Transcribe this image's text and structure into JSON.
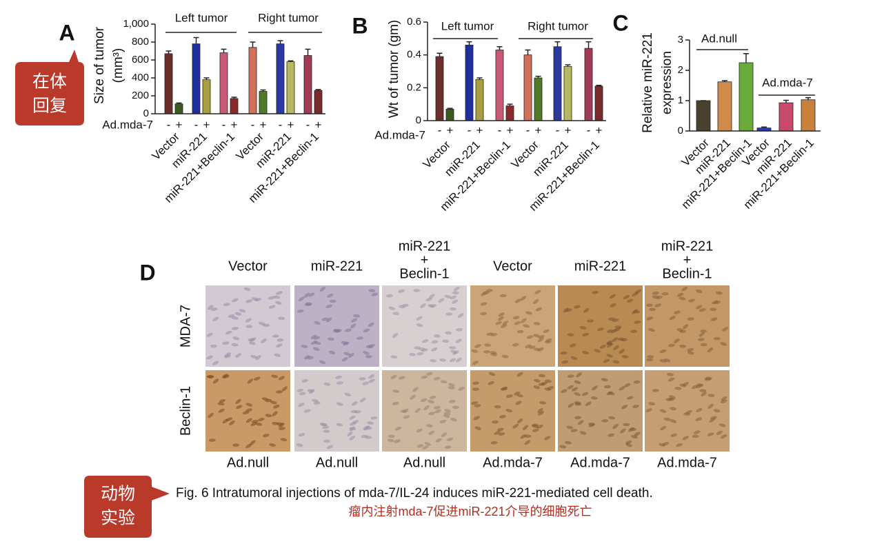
{
  "chart_data": [
    {
      "type": "bar",
      "panel": "A",
      "ylabel": [
        "Size of tumor",
        "(mm³)"
      ],
      "ylim": [
        0,
        1000
      ],
      "yticks": [
        0,
        200,
        400,
        600,
        800,
        {
          "value": 1000,
          "label": "1,000"
        }
      ],
      "factor_label": "Ad.mda-7",
      "sections": [
        "Left tumor",
        "Right tumor"
      ],
      "group_labels": [
        "Vector",
        "miR-221",
        "miR-221+Beclin-1",
        "Vector",
        "miR-221",
        "miR-221+Beclin-1"
      ],
      "categories": [
        "-",
        "+",
        "-",
        "+",
        "-",
        "+",
        "-",
        "+",
        "-",
        "+",
        "-",
        "+"
      ],
      "values": [
        670,
        110,
        780,
        380,
        680,
        170,
        740,
        250,
        780,
        580,
        650,
        260
      ],
      "errors": [
        30,
        10,
        70,
        20,
        40,
        15,
        60,
        15,
        35,
        10,
        70,
        10
      ],
      "colors": [
        "#6b2e2a",
        "#3d5a1e",
        "#1f2f9e",
        "#a8a040",
        "#c85a78",
        "#8b2a2a",
        "#d0705a",
        "#4f7a2a",
        "#2a3a9e",
        "#b8b860",
        "#a03a55",
        "#7a2a2a"
      ]
    },
    {
      "type": "bar",
      "panel": "B",
      "ylabel": [
        "Wt of tumor (gm)"
      ],
      "ylim": [
        0,
        0.6
      ],
      "yticks": [
        0,
        0.2,
        0.4,
        0.6
      ],
      "factor_label": "Ad.mda-7",
      "sections": [
        "Left tumor",
        "Right tumor"
      ],
      "group_labels": [
        "Vector",
        "miR-221",
        "miR-221+Beclin-1",
        "Vector",
        "miR-221",
        "miR-221+Beclin-1"
      ],
      "categories": [
        "-",
        "+",
        "-",
        "+",
        "-",
        "+",
        "-",
        "+",
        "-",
        "+",
        "-",
        "+"
      ],
      "values": [
        0.39,
        0.07,
        0.46,
        0.25,
        0.43,
        0.09,
        0.4,
        0.26,
        0.45,
        0.33,
        0.44,
        0.21
      ],
      "errors": [
        0.02,
        0.005,
        0.02,
        0.01,
        0.02,
        0.01,
        0.03,
        0.01,
        0.03,
        0.01,
        0.04,
        0.005
      ],
      "colors": [
        "#6b2e2a",
        "#3d5a1e",
        "#1f2f9e",
        "#a8a040",
        "#c85a78",
        "#8b2a2a",
        "#d0705a",
        "#4f7a2a",
        "#2a3a9e",
        "#b8b860",
        "#a03a55",
        "#7a2a2a"
      ]
    },
    {
      "type": "bar",
      "panel": "C",
      "ylabel": [
        "Relative miR-221",
        "expression"
      ],
      "ylim": [
        0,
        3
      ],
      "yticks": [
        0,
        1,
        2,
        3
      ],
      "sections": [
        "Ad.null",
        "Ad.mda-7"
      ],
      "categories": [
        "Vector",
        "miR-221",
        "miR-221+Beclin-1",
        "Vector",
        "miR-221",
        "miR-221+Beclin-1"
      ],
      "values": [
        1.0,
        1.62,
        2.25,
        0.1,
        0.93,
        1.03
      ],
      "errors": [
        0,
        0.04,
        0.3,
        0.03,
        0.08,
        0.07
      ],
      "colors": [
        "#4a4030",
        "#d08a4a",
        "#6aaa3a",
        "#2a3ab0",
        "#c84a6a",
        "#c8803a"
      ]
    }
  ],
  "panel_d": {
    "letter": "D",
    "columns": [
      [
        "Vector"
      ],
      [
        "miR-221"
      ],
      [
        "miR-221",
        "+",
        "Beclin-1"
      ],
      [
        "Vector"
      ],
      [
        "miR-221"
      ],
      [
        "miR-221",
        "+",
        "Beclin-1"
      ]
    ],
    "rows": [
      "MDA-7",
      "Beclin-1"
    ],
    "footers": [
      "Ad.null",
      "Ad.null",
      "Ad.null",
      "Ad.mda-7",
      "Ad.mda-7",
      "Ad.mda-7"
    ]
  },
  "callouts": [
    [
      "在体",
      "回复"
    ],
    [
      "动物",
      "实验"
    ]
  ],
  "caption": "Fig. 6 Intratumoral injections of mda-7/IL-24 induces miR-221-mediated cell death.",
  "caption_cn": "瘤内注射mda-7促进miR-221介导的细胞死亡"
}
